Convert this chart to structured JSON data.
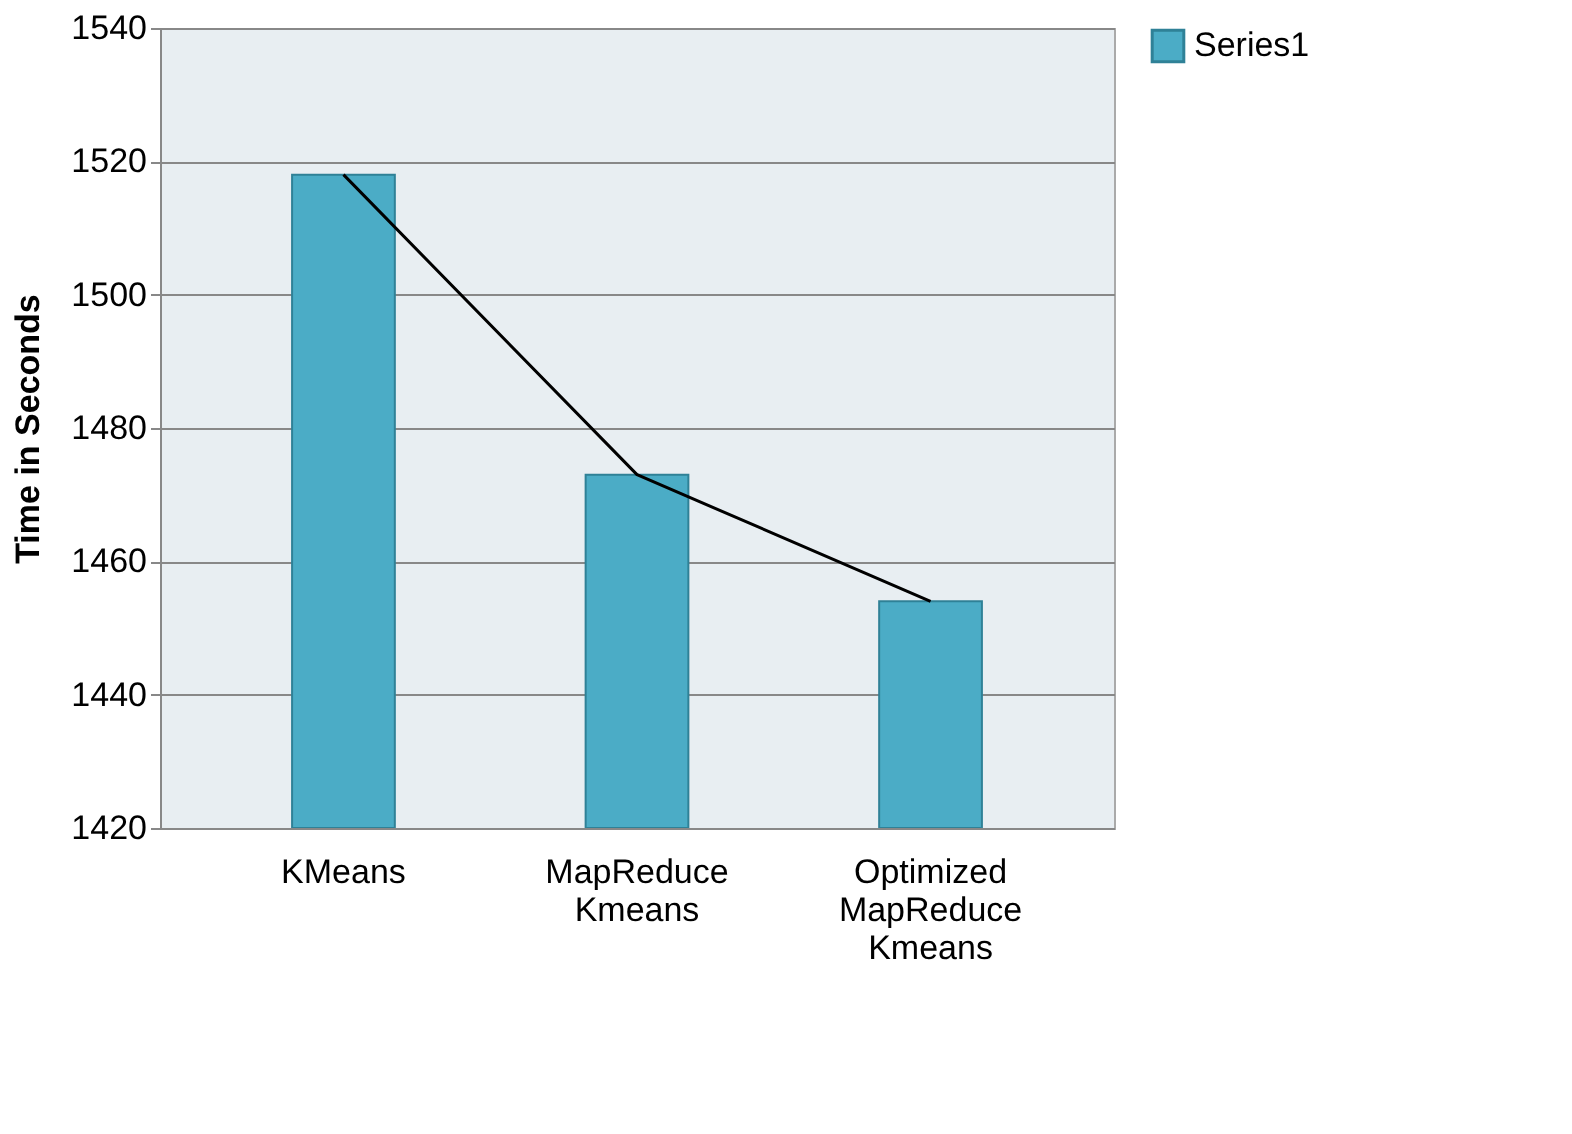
{
  "chart_data": {
    "type": "bar",
    "ylabel": "Time in Seconds",
    "categories": [
      "KMeans",
      "MapReduce Kmeans",
      "Optimized MapReduce Kmeans"
    ],
    "series": [
      {
        "name": "Series1",
        "color": "#4bacc6",
        "values": [
          1518,
          1473,
          1454
        ]
      },
      {
        "type": "line",
        "color": "#000000",
        "values": [
          1518,
          1473,
          1454
        ]
      }
    ],
    "ylim": [
      1420,
      1540
    ],
    "yticks": [
      1420,
      1440,
      1460,
      1480,
      1500,
      1520,
      1540
    ],
    "grid": "y",
    "legend": "right"
  }
}
